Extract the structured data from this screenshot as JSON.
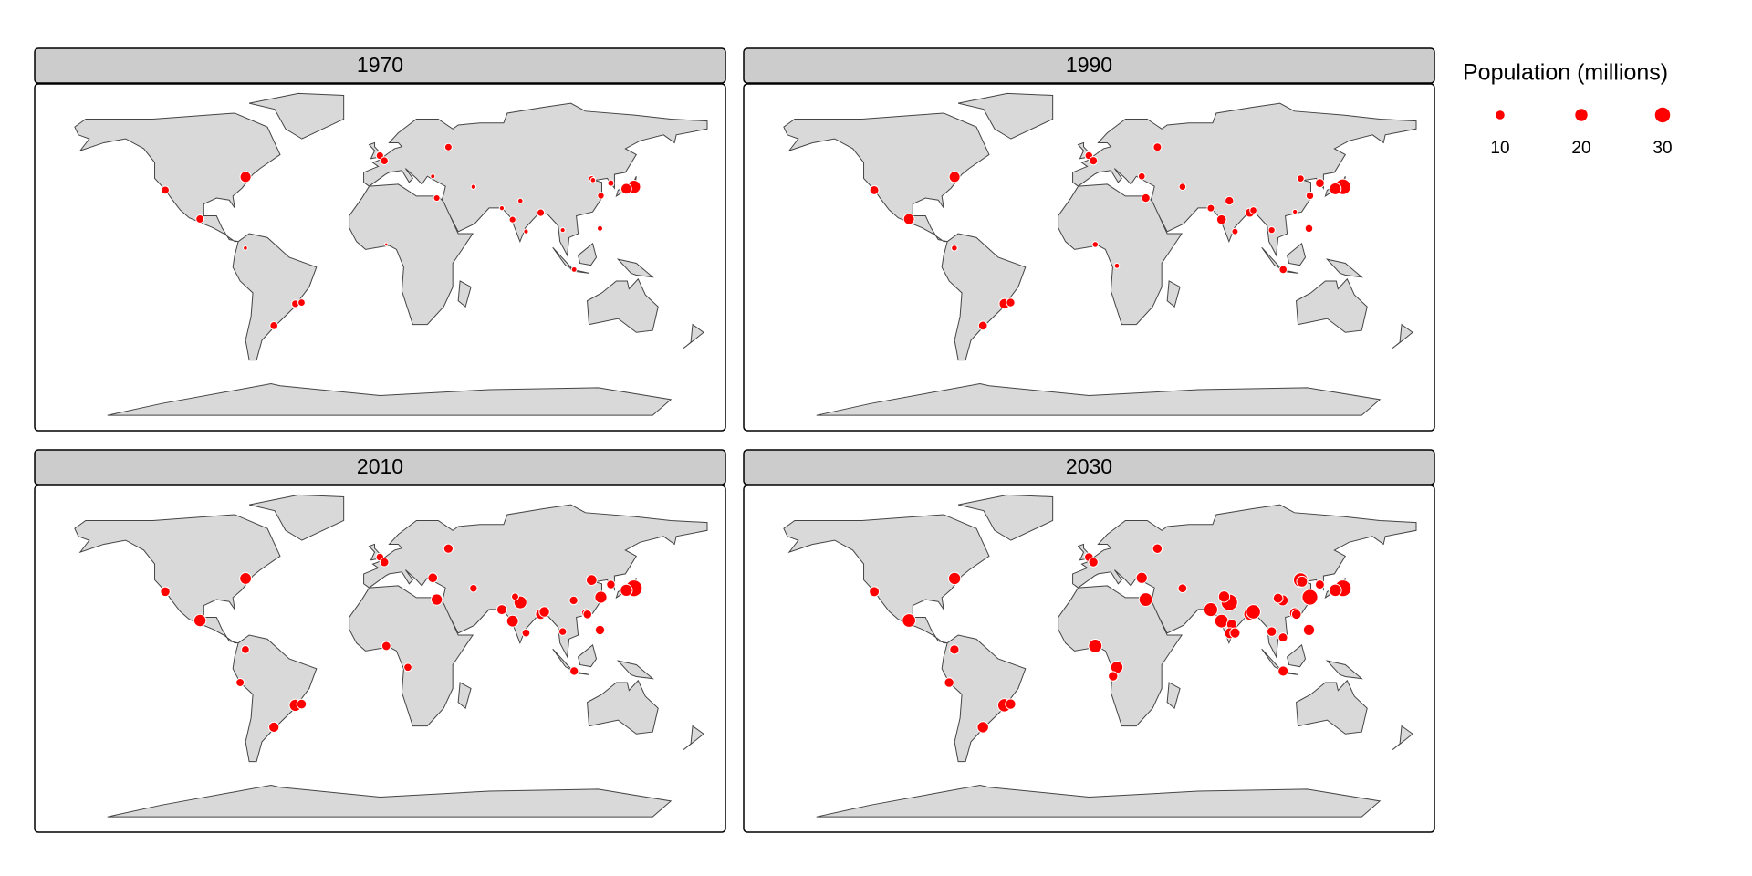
{
  "chart_data": {
    "type": "bubble-map",
    "color": "#ff0000",
    "xlim": [
      -180,
      180
    ],
    "ylim": [
      -85,
      85
    ],
    "size_legend": {
      "title": "Population (millions)",
      "values": [
        10,
        20,
        30
      ]
    },
    "panels": [
      {
        "title": "1970",
        "lon": [
          139.7,
          135.5,
          -74,
          -118.2,
          -99.1,
          -46.6,
          -43.2,
          -58.4,
          -0.1,
          2.35,
          37.6,
          31.2,
          88.4,
          72.9,
          77.2,
          67,
          51.4,
          127,
          116.4,
          121.5,
          117.2,
          121,
          106.8,
          -74.1,
          3.4,
          29,
          80.3,
          100.5
        ],
        "lat": [
          35.7,
          34.7,
          40.7,
          34,
          19.4,
          -23.5,
          -22.9,
          -34.6,
          51.5,
          48.9,
          55.8,
          30,
          22.6,
          19.1,
          28.6,
          24.9,
          35.7,
          37.6,
          39.9,
          31.2,
          39.1,
          14.6,
          -6.2,
          4.7,
          6.5,
          41,
          13.1,
          13.8
        ],
        "values": [
          23.3,
          15.3,
          16.2,
          8.4,
          8.8,
          7.6,
          6.8,
          8.4,
          7.5,
          8.2,
          7.1,
          5.6,
          7.3,
          5.8,
          3.5,
          3.1,
          3.3,
          5.3,
          4.4,
          6,
          3.5,
          4,
          3.9,
          2.4,
          1.4,
          2.8,
          3,
          3.1
        ]
      },
      {
        "title": "1990",
        "lon": [
          139.7,
          135.5,
          -74,
          -118.2,
          -99.1,
          -46.6,
          -43.2,
          -58.4,
          -0.1,
          2.35,
          37.6,
          31.2,
          29,
          88.4,
          72.9,
          77.2,
          67,
          90.4,
          51.4,
          127,
          116.4,
          121.5,
          121,
          106.8,
          -74.1,
          3.4,
          100.5,
          80.3,
          15.3,
          113.3
        ],
        "lat": [
          35.7,
          34.7,
          40.7,
          34,
          19.4,
          -23.5,
          -22.9,
          -34.6,
          51.5,
          48.9,
          55.8,
          30,
          41,
          22.6,
          19.1,
          28.6,
          24.9,
          23.8,
          35.7,
          37.6,
          39.9,
          31.2,
          14.6,
          -6.2,
          4.7,
          6.5,
          13.8,
          13.1,
          -4.3,
          23.1
        ],
        "values": [
          32.5,
          18.4,
          16.1,
          10.9,
          15.6,
          14.8,
          9.7,
          10.5,
          8,
          9.3,
          9,
          9.9,
          6.6,
          10.9,
          12.4,
          9.7,
          7.1,
          6.6,
          6.4,
          10.5,
          6.8,
          7.8,
          8,
          8.2,
          4.7,
          4.8,
          5.9,
          5.3,
          3.7,
          3.1
        ]
      },
      {
        "title": "2010",
        "lon": [
          139.7,
          135.5,
          -74,
          -118.2,
          -99.1,
          -46.6,
          -43.2,
          -58.4,
          -0.1,
          2.35,
          37.6,
          31.2,
          29,
          3.4,
          15.3,
          88.4,
          72.9,
          77.2,
          67,
          90.4,
          74.3,
          51.4,
          127,
          116.4,
          121.5,
          113.3,
          114.1,
          106.5,
          121,
          106.8,
          -74.1,
          100.5,
          80.3,
          -77
        ],
        "lat": [
          35.7,
          34.7,
          40.7,
          34,
          19.4,
          -23.5,
          -22.9,
          -34.6,
          51.5,
          48.9,
          55.8,
          30,
          41,
          6.5,
          -4.3,
          22.6,
          19.1,
          28.6,
          24.9,
          23.8,
          31.5,
          35.7,
          37.6,
          39.9,
          31.2,
          23.1,
          22.5,
          29.6,
          14.6,
          -6.2,
          4.7,
          13.8,
          13.1,
          -12
        ],
        "values": [
          36.8,
          19.5,
          18.4,
          12.2,
          20.1,
          19.7,
          12.4,
          14.2,
          8,
          10.5,
          11.5,
          16.9,
          12.7,
          10.6,
          8.4,
          14.3,
          18.3,
          21.9,
          13.5,
          14.7,
          7,
          8.1,
          9.8,
          15.4,
          19.6,
          10.5,
          10.2,
          9.7,
          11.9,
          9.6,
          8.5,
          8.2,
          8.5,
          8.9
        ]
      },
      {
        "title": "2030",
        "lon": [
          139.7,
          135.5,
          -74,
          -118.2,
          -99.1,
          -46.6,
          -43.2,
          -58.4,
          -0.1,
          2.35,
          37.6,
          31.2,
          29,
          3.4,
          15.3,
          13.2,
          88.4,
          72.9,
          77.2,
          67,
          90.4,
          74.3,
          78.5,
          77.6,
          80.3,
          51.4,
          127,
          116.4,
          121.5,
          117.2,
          113.3,
          114.1,
          106.5,
          104,
          121,
          106.8,
          100.5,
          -74.1,
          -77,
          106.7
        ],
        "lat": [
          35.7,
          34.7,
          40.7,
          34,
          19.4,
          -23.5,
          -22.9,
          -34.6,
          51.5,
          48.9,
          55.8,
          30,
          41,
          6.5,
          -4.3,
          -8.8,
          22.6,
          19.1,
          28.6,
          24.9,
          23.8,
          31.5,
          17.4,
          13,
          13.1,
          35.7,
          37.6,
          39.9,
          31.2,
          39.1,
          23.1,
          22.5,
          29.6,
          30.7,
          14.6,
          -6.2,
          13.8,
          4.7,
          -12,
          10.8
        ],
        "values": [
          36.6,
          20.3,
          19.9,
          13.3,
          23.9,
          23.4,
          14.2,
          17.1,
          10.3,
          11.8,
          12.2,
          24.5,
          16.7,
          24.2,
          19.9,
          12,
          19.1,
          24.6,
          36,
          25.3,
          27.4,
          16.9,
          13.7,
          16.2,
          13.9,
          10.5,
          10.8,
          27.7,
          32.9,
          15.7,
          15.7,
          12.7,
          16.2,
          13,
          16.8,
          13.8,
          12.1,
          11.7,
          12.2,
          11.1
        ]
      }
    ]
  }
}
